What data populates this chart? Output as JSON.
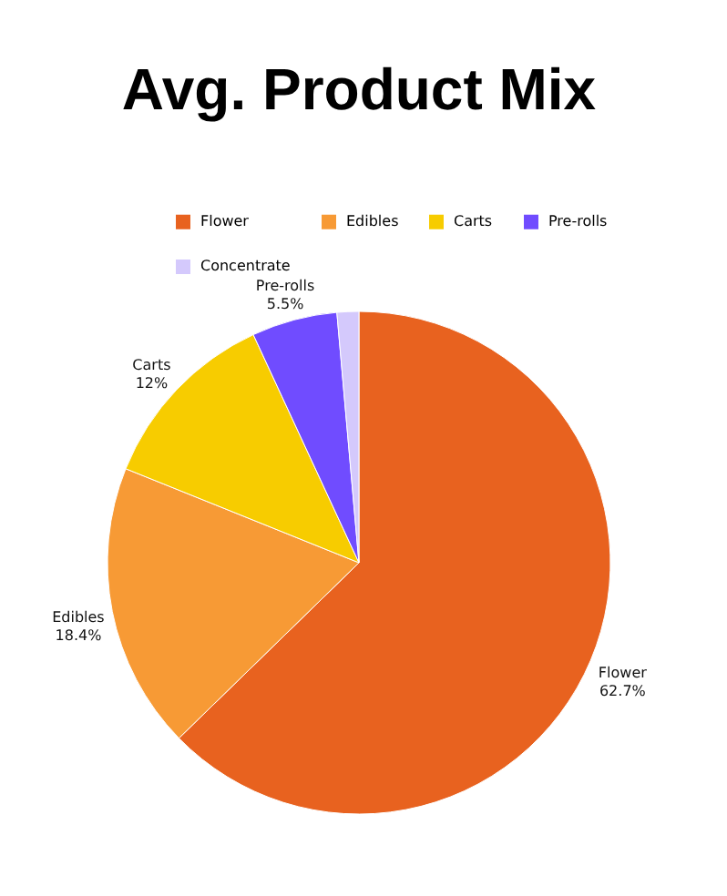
{
  "chart_data": {
    "type": "pie",
    "title": "Avg. Product Mix",
    "categories": [
      "Flower",
      "Edibles",
      "Carts",
      "Pre-rolls",
      "Concentrate"
    ],
    "values": [
      62.7,
      18.4,
      12,
      5.5,
      1.4
    ],
    "value_labels": [
      "62.7%",
      "18.4%",
      "12%",
      "5.5%",
      null
    ],
    "colors": [
      "#e8621f",
      "#f79a35",
      "#f7cc00",
      "#704cff",
      "#d4c9fc"
    ],
    "legend": "top"
  }
}
